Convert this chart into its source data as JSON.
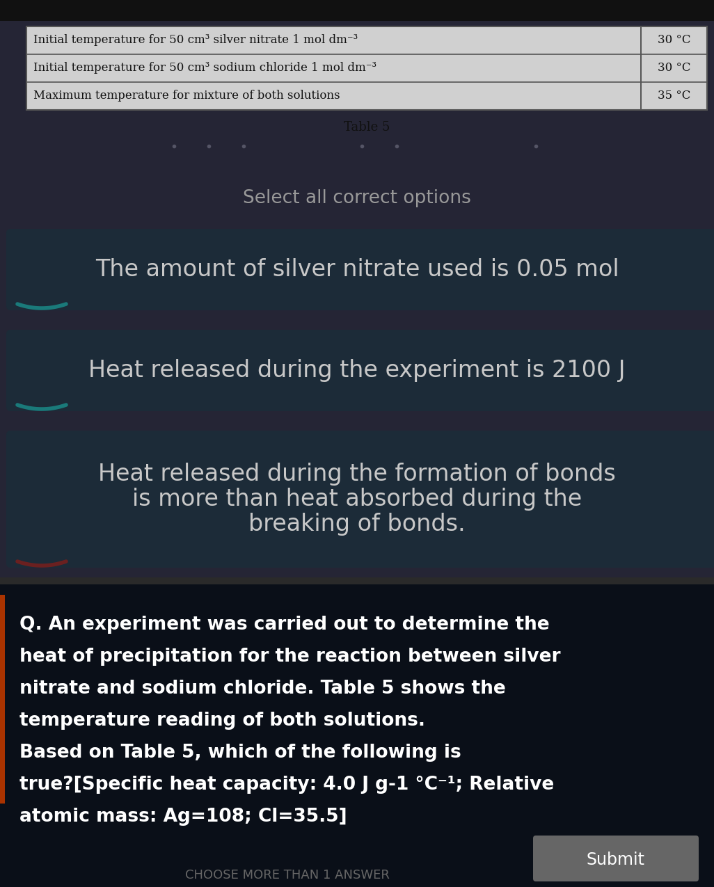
{
  "bg_top_color": "#2a2a2a",
  "bg_mid_color": "#1a1a2e",
  "bg_dark_color": "#0d1015",
  "table_bg": "#d0d0d0",
  "table_border": "#555555",
  "table_rows": [
    [
      "Initial temperature for 50 cm³ silver nitrate 1 mol dm⁻³",
      "30 °C"
    ],
    [
      "Initial temperature for 50 cm³ sodium chloride 1 mol dm⁻³",
      "30 °C"
    ],
    [
      "Maximum temperature for mixture of both solutions",
      "35 °C"
    ]
  ],
  "table_caption": "Table 5",
  "table_text_color": "#111111",
  "table_caption_color": "#111111",
  "select_text": "Select all correct options",
  "select_text_color": "#999999",
  "option1": "The amount of silver nitrate used is 0.05 mol",
  "option2": "Heat released during the experiment is 2100 J",
  "option3_lines": [
    "Heat released during the formation of bonds",
    "is more than heat absorbed during the",
    "breaking of bonds."
  ],
  "option_text_color": "#c8c8c8",
  "option_bg_color": "#1c2b38",
  "option_bottom_accent1": "#1a7a7a",
  "option_bottom_accent3": "#6a2020",
  "question_bg": "#0a0f18",
  "question_text_color": "#ffffff",
  "q_lines": [
    "Q. An experiment was carried out to determine the",
    "heat of precipitation for the reaction between silver",
    "nitrate and sodium chloride. Table 5 shows the",
    "temperature reading of both solutions.",
    "Based on Table 5, which of the following is",
    "true?[Specific heat capacity: 4.0 J g-1 °C⁻¹; Relative",
    "atomic mass: Ag=108; Cl=35.5]"
  ],
  "accent_color": "#aa3300",
  "submit_bg": "#666666",
  "submit_text": "Submit",
  "submit_text_color": "#ffffff",
  "bottom_text": "CHOOSE MORE THAN 1 ANSWER",
  "bottom_text_color": "#666666",
  "fig_width": 10.26,
  "fig_height": 12.75,
  "dpi": 100
}
